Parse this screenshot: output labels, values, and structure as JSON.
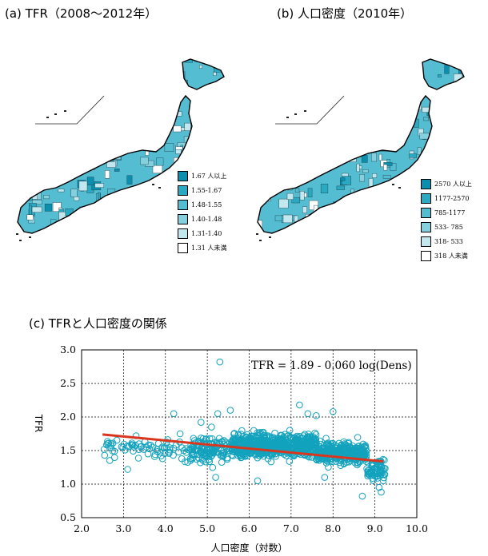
{
  "panels": {
    "a_title": "(a) TFR（2008～2012年）",
    "b_title": "(b) 人口密度（2010年）",
    "c_title": "(c) TFRと人口密度の関係"
  },
  "colors": {
    "c1": "#0a8fae",
    "c2": "#2ba8c2",
    "c3": "#55bdd1",
    "c4": "#85d0df",
    "c5": "#c3e7ef",
    "c6": "#ffffff",
    "points": "#12a2bd",
    "fit_line": "#d9361f"
  },
  "legend_a": [
    {
      "label": "1.67 人以上",
      "color": "#0a8fae"
    },
    {
      "label": "1.55-1.67",
      "color": "#2ba8c2"
    },
    {
      "label": "1.48-1.55",
      "color": "#55bdd1"
    },
    {
      "label": "1.40-1.48",
      "color": "#85d0df"
    },
    {
      "label": "1.31-1.40",
      "color": "#c3e7ef"
    },
    {
      "label": "1.31 人未満",
      "color": "#ffffff"
    }
  ],
  "legend_b": [
    {
      "label": "2570 人以上",
      "color": "#0a8fae"
    },
    {
      "label": "1177-2570",
      "color": "#2ba8c2"
    },
    {
      "label": "785-1177",
      "color": "#55bdd1"
    },
    {
      "label": "533- 785",
      "color": "#85d0df"
    },
    {
      "label": "318- 533",
      "color": "#c3e7ef"
    },
    {
      "label": "318 人未満",
      "color": "#ffffff"
    }
  ],
  "chart_data": {
    "type": "scatter",
    "title": "(c) TFRと人口密度の関係",
    "xlabel": "人口密度（対数）",
    "ylabel": "TFR",
    "xlim": [
      2.0,
      10.0
    ],
    "ylim": [
      0.5,
      3.0
    ],
    "xticks": [
      "2.0",
      "3.0",
      "4.0",
      "5.0",
      "6.0",
      "7.0",
      "8.0",
      "9.0",
      "10.0"
    ],
    "yticks": [
      "0.5",
      "1.0",
      "1.5",
      "2.0",
      "2.5",
      "3.0"
    ],
    "grid": true,
    "annotation": "TFR = 1.89 - 0.060 log(Dens)",
    "fit": {
      "intercept": 1.89,
      "slope": -0.06,
      "x_from": 2.5,
      "x_to": 9.2
    },
    "point_clusters": [
      {
        "x_range": [
          2.5,
          4.6
        ],
        "y_center": 1.52,
        "y_spread": 0.16,
        "n": 70
      },
      {
        "x_range": [
          4.6,
          5.6
        ],
        "y_center": 1.52,
        "y_spread": 0.17,
        "n": 130
      },
      {
        "x_range": [
          5.6,
          7.6
        ],
        "y_center": 1.58,
        "y_spread": 0.16,
        "n": 650
      },
      {
        "x_range": [
          7.6,
          8.8
        ],
        "y_center": 1.46,
        "y_spread": 0.15,
        "n": 320
      },
      {
        "x_range": [
          8.8,
          9.25
        ],
        "y_center": 1.22,
        "y_spread": 0.15,
        "n": 70
      }
    ],
    "points": [
      {
        "x": 2.55,
        "y": 1.43
      },
      {
        "x": 3.1,
        "y": 1.22
      },
      {
        "x": 3.3,
        "y": 1.72
      },
      {
        "x": 3.65,
        "y": 1.58
      },
      {
        "x": 3.9,
        "y": 1.42
      },
      {
        "x": 4.2,
        "y": 2.05
      },
      {
        "x": 4.35,
        "y": 1.75
      },
      {
        "x": 4.6,
        "y": 1.38
      },
      {
        "x": 4.85,
        "y": 1.92
      },
      {
        "x": 5.1,
        "y": 1.85
      },
      {
        "x": 5.3,
        "y": 2.82
      },
      {
        "x": 5.2,
        "y": 1.1
      },
      {
        "x": 5.25,
        "y": 2.05
      },
      {
        "x": 5.55,
        "y": 2.1
      },
      {
        "x": 7.2,
        "y": 2.18
      },
      {
        "x": 7.4,
        "y": 2.05
      },
      {
        "x": 7.6,
        "y": 2.02
      },
      {
        "x": 8.0,
        "y": 2.08
      },
      {
        "x": 8.7,
        "y": 0.82
      },
      {
        "x": 9.15,
        "y": 0.88
      },
      {
        "x": 9.1,
        "y": 0.95
      },
      {
        "x": 9.2,
        "y": 1.05
      },
      {
        "x": 9.0,
        "y": 1.12
      },
      {
        "x": 6.2,
        "y": 1.05
      },
      {
        "x": 7.8,
        "y": 1.1
      }
    ]
  }
}
